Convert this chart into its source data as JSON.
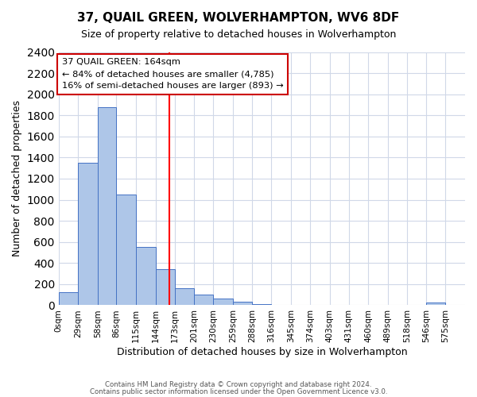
{
  "title": "37, QUAIL GREEN, WOLVERHAMPTON, WV6 8DF",
  "subtitle": "Size of property relative to detached houses in Wolverhampton",
  "xlabel": "Distribution of detached houses by size in Wolverhampton",
  "ylabel": "Number of detached properties",
  "bin_labels": [
    "0sqm",
    "29sqm",
    "58sqm",
    "86sqm",
    "115sqm",
    "144sqm",
    "173sqm",
    "201sqm",
    "230sqm",
    "259sqm",
    "288sqm",
    "316sqm",
    "345sqm",
    "374sqm",
    "403sqm",
    "431sqm",
    "460sqm",
    "489sqm",
    "518sqm",
    "546sqm",
    "575sqm"
  ],
  "bin_edges": [
    0,
    29,
    58,
    86,
    115,
    144,
    173,
    201,
    230,
    259,
    288,
    316,
    345,
    374,
    403,
    431,
    460,
    489,
    518,
    546,
    575,
    604
  ],
  "bar_heights": [
    125,
    1350,
    1880,
    1050,
    550,
    340,
    160,
    105,
    60,
    30,
    10,
    5,
    0,
    0,
    0,
    0,
    0,
    0,
    0,
    25,
    0
  ],
  "bar_color": "#aec6e8",
  "bar_edge_color": "#4472c4",
  "grid_color": "#d0d8e8",
  "background_color": "#ffffff",
  "ylim": [
    0,
    2400
  ],
  "yticks": [
    0,
    200,
    400,
    600,
    800,
    1000,
    1200,
    1400,
    1600,
    1800,
    2000,
    2200,
    2400
  ],
  "property_line_x": 164,
  "property_line_color": "red",
  "annotation_title": "37 QUAIL GREEN: 164sqm",
  "annotation_line1": "← 84% of detached houses are smaller (4,785)",
  "annotation_line2": "16% of semi-detached houses are larger (893) →",
  "annotation_box_color": "#ffffff",
  "annotation_box_edge_color": "#cc0000",
  "footer_line1": "Contains HM Land Registry data © Crown copyright and database right 2024.",
  "footer_line2": "Contains public sector information licensed under the Open Government Licence v3.0."
}
